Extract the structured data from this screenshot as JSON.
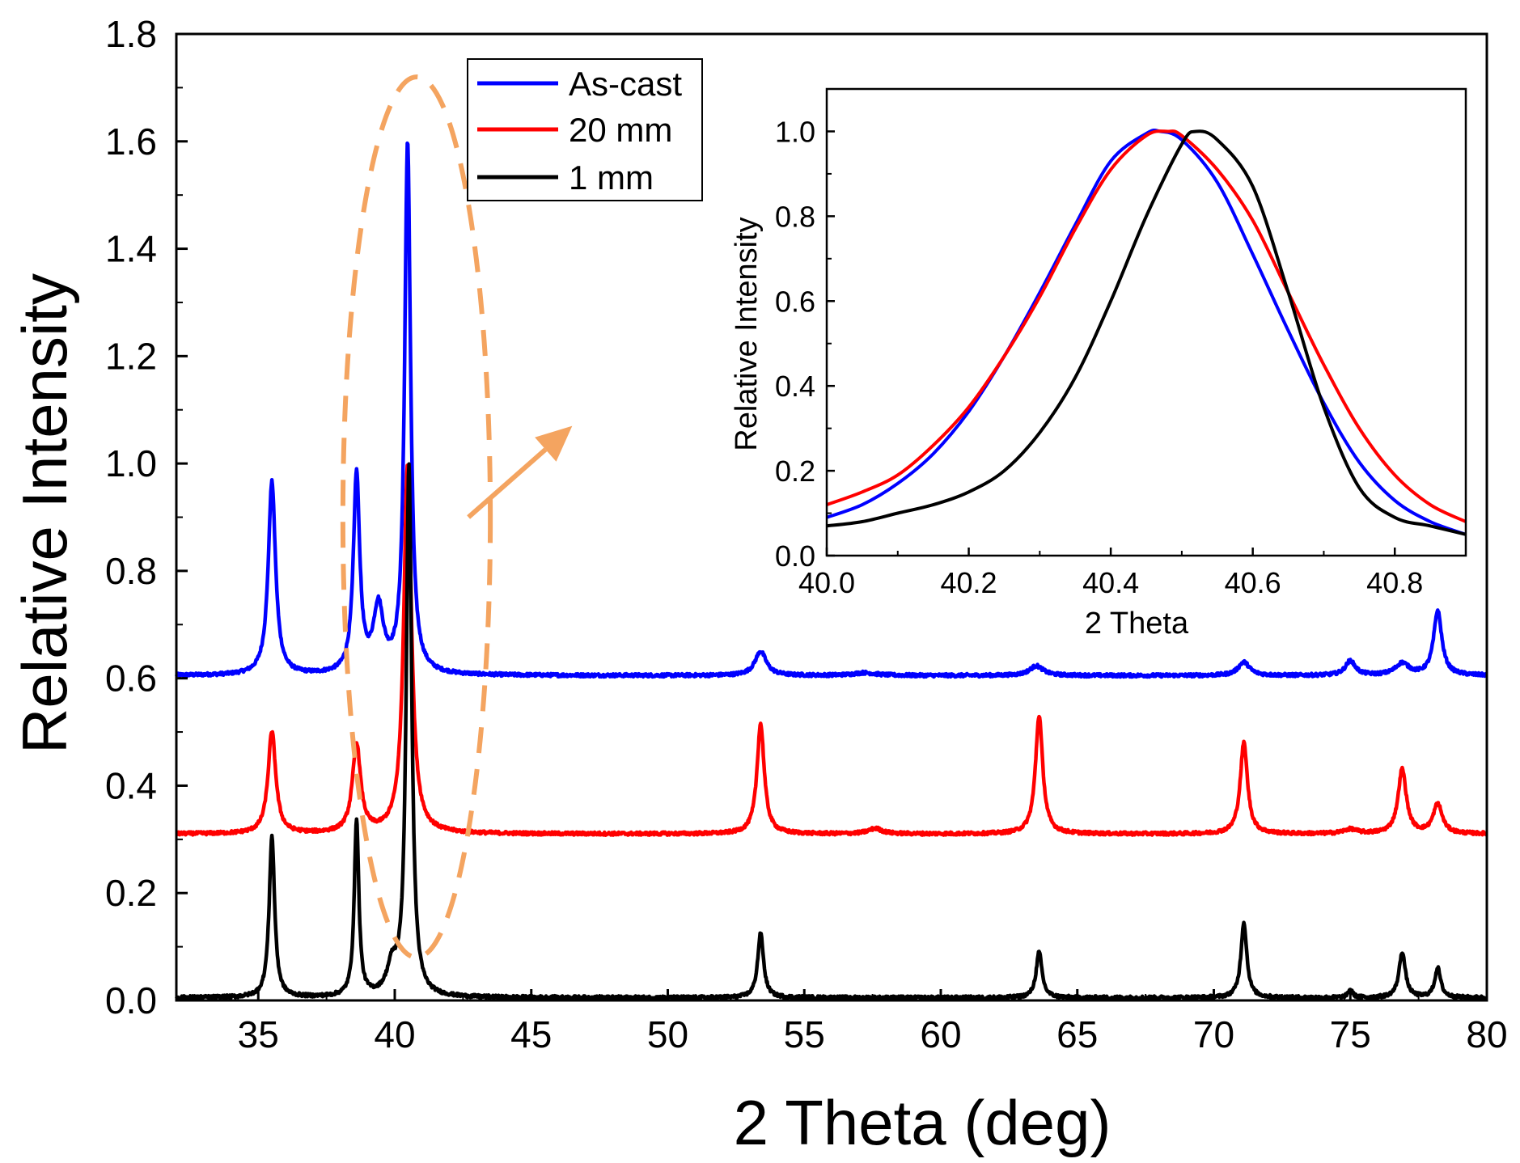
{
  "chart_data": [
    {
      "type": "line",
      "title": "",
      "xlabel": "2 Theta (deg)",
      "ylabel": "Relative Intensity",
      "xlim": [
        32,
        80
      ],
      "ylim": [
        0,
        1.8
      ],
      "xticks": [
        35,
        40,
        45,
        50,
        55,
        60,
        65,
        70,
        75,
        80
      ],
      "yticks": [
        0.0,
        0.2,
        0.4,
        0.6,
        0.8,
        1.0,
        1.2,
        1.4,
        1.6,
        1.8
      ],
      "xtick_labels": [
        "35",
        "40",
        "45",
        "50",
        "55",
        "60",
        "65",
        "70",
        "75",
        "80"
      ],
      "ytick_labels": [
        "0.0",
        "0.2",
        "0.4",
        "0.6",
        "0.8",
        "1.0",
        "1.2",
        "1.4",
        "1.6",
        "1.8"
      ],
      "legend": {
        "position": "top-center",
        "entries": [
          "As-cast",
          "20 mm",
          "1 mm"
        ]
      },
      "series": [
        {
          "name": "As-cast",
          "color": "#0000ff",
          "baseline": 0.605,
          "peaks": [
            {
              "x": 35.5,
              "height": 0.36,
              "width": 0.16
            },
            {
              "x": 38.6,
              "height": 0.37,
              "width": 0.14
            },
            {
              "x": 39.4,
              "height": 0.12,
              "width": 0.22
            },
            {
              "x": 40.47,
              "height": 0.99,
              "width": 0.13
            },
            {
              "x": 53.4,
              "height": 0.045,
              "width": 0.25
            },
            {
              "x": 57.2,
              "height": 0.005,
              "width": 0.5
            },
            {
              "x": 63.5,
              "height": 0.018,
              "width": 0.3
            },
            {
              "x": 71.1,
              "height": 0.025,
              "width": 0.25
            },
            {
              "x": 75.0,
              "height": 0.027,
              "width": 0.22
            },
            {
              "x": 76.9,
              "height": 0.022,
              "width": 0.3
            },
            {
              "x": 78.2,
              "height": 0.12,
              "width": 0.18
            }
          ]
        },
        {
          "name": "20 mm",
          "color": "#ff0000",
          "baseline": 0.31,
          "peaks": [
            {
              "x": 35.5,
              "height": 0.19,
              "width": 0.17
            },
            {
              "x": 38.6,
              "height": 0.165,
              "width": 0.18
            },
            {
              "x": 40.47,
              "height": 0.69,
              "width": 0.17
            },
            {
              "x": 53.4,
              "height": 0.205,
              "width": 0.16
            },
            {
              "x": 57.6,
              "height": 0.01,
              "width": 0.3
            },
            {
              "x": 63.6,
              "height": 0.22,
              "width": 0.16
            },
            {
              "x": 71.1,
              "height": 0.17,
              "width": 0.16
            },
            {
              "x": 75.0,
              "height": 0.008,
              "width": 0.3
            },
            {
              "x": 76.9,
              "height": 0.12,
              "width": 0.18
            },
            {
              "x": 78.2,
              "height": 0.055,
              "width": 0.2
            }
          ]
        },
        {
          "name": "1 mm",
          "color": "#000000",
          "baseline": 0.005,
          "peaks": [
            {
              "x": 35.5,
              "height": 0.3,
              "width": 0.12
            },
            {
              "x": 38.6,
              "height": 0.33,
              "width": 0.1
            },
            {
              "x": 39.9,
              "height": 0.05,
              "width": 0.22
            },
            {
              "x": 40.52,
              "height": 0.99,
              "width": 0.12
            },
            {
              "x": 53.4,
              "height": 0.12,
              "width": 0.13
            },
            {
              "x": 63.6,
              "height": 0.085,
              "width": 0.13
            },
            {
              "x": 71.1,
              "height": 0.14,
              "width": 0.13
            },
            {
              "x": 75.0,
              "height": 0.015,
              "width": 0.1
            },
            {
              "x": 76.9,
              "height": 0.085,
              "width": 0.14
            },
            {
              "x": 78.2,
              "height": 0.055,
              "width": 0.13
            }
          ]
        }
      ],
      "annotations": [
        {
          "type": "dashed-ellipse",
          "color": "#f4a460",
          "center": [
            40.8,
            0.9
          ],
          "rx_data": 2.7,
          "ry_data": 0.82,
          "note": "highlights main peak near 40.5"
        },
        {
          "type": "arrow",
          "color": "#f4a460",
          "from": [
            42.7,
            0.9
          ],
          "to": [
            46.5,
            1.07
          ]
        }
      ]
    },
    {
      "type": "line",
      "title": "",
      "xlabel": "2 Theta",
      "ylabel": "Relative Intensity",
      "xlim": [
        40.0,
        40.9
      ],
      "ylim": [
        0,
        1.1
      ],
      "xticks": [
        40.0,
        40.2,
        40.4,
        40.6,
        40.8
      ],
      "yticks": [
        0.0,
        0.2,
        0.4,
        0.6,
        0.8,
        1.0
      ],
      "xtick_labels": [
        "40.0",
        "40.2",
        "40.4",
        "40.6",
        "40.8"
      ],
      "ytick_labels": [
        "0.0",
        "0.2",
        "0.4",
        "0.6",
        "0.8",
        "1.0"
      ],
      "series": [
        {
          "name": "As-cast",
          "color": "#0000ff",
          "x": [
            40.0,
            40.05,
            40.1,
            40.15,
            40.2,
            40.25,
            40.3,
            40.35,
            40.4,
            40.45,
            40.47,
            40.5,
            40.55,
            40.6,
            40.65,
            40.7,
            40.75,
            40.8,
            40.85,
            40.9
          ],
          "y": [
            0.09,
            0.12,
            0.17,
            0.24,
            0.34,
            0.47,
            0.62,
            0.78,
            0.93,
            0.995,
            1.0,
            0.98,
            0.88,
            0.71,
            0.53,
            0.36,
            0.22,
            0.13,
            0.08,
            0.05
          ]
        },
        {
          "name": "20 mm",
          "color": "#ff0000",
          "x": [
            40.0,
            40.05,
            40.1,
            40.15,
            40.2,
            40.25,
            40.3,
            40.35,
            40.4,
            40.45,
            40.48,
            40.5,
            40.55,
            40.6,
            40.65,
            40.7,
            40.75,
            40.8,
            40.85,
            40.9
          ],
          "y": [
            0.12,
            0.15,
            0.19,
            0.26,
            0.35,
            0.47,
            0.61,
            0.77,
            0.91,
            0.99,
            1.0,
            0.99,
            0.91,
            0.79,
            0.62,
            0.45,
            0.3,
            0.19,
            0.12,
            0.08
          ]
        },
        {
          "name": "1 mm",
          "color": "#000000",
          "x": [
            40.0,
            40.05,
            40.1,
            40.15,
            40.2,
            40.25,
            40.3,
            40.35,
            40.4,
            40.45,
            40.5,
            40.52,
            40.55,
            40.6,
            40.65,
            40.7,
            40.75,
            40.8,
            40.85,
            40.9
          ],
          "y": [
            0.07,
            0.08,
            0.1,
            0.12,
            0.15,
            0.2,
            0.29,
            0.42,
            0.6,
            0.8,
            0.97,
            1.0,
            0.98,
            0.87,
            0.62,
            0.35,
            0.16,
            0.09,
            0.07,
            0.05
          ]
        }
      ]
    }
  ]
}
